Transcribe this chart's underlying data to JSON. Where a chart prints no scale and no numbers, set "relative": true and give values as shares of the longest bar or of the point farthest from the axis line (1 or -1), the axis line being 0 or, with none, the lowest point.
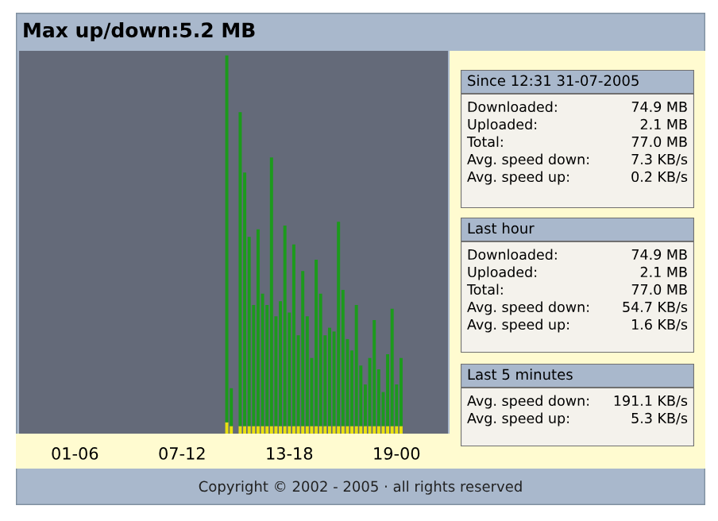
{
  "chart_data": [
    {
      "type": "bar",
      "title": "Max up/down:5.2 MB",
      "relative": true,
      "stacked": true,
      "tick_labels": "x",
      "categories": [
        null,
        null,
        null,
        null,
        null,
        null,
        null,
        null,
        null,
        null,
        null,
        null,
        "01-06",
        null,
        null,
        null,
        null,
        null,
        null,
        null,
        null,
        null,
        null,
        null,
        null,
        null,
        null,
        null,
        null,
        null,
        null,
        null,
        null,
        null,
        null,
        null,
        "07-12",
        null,
        null,
        null,
        null,
        null,
        null,
        null,
        null,
        null,
        null,
        null,
        null,
        null,
        null,
        null,
        null,
        null,
        null,
        null,
        null,
        null,
        null,
        null,
        "13-18",
        null,
        null,
        null,
        null,
        null,
        null,
        null,
        null,
        null,
        null,
        null,
        null,
        null,
        null,
        null,
        null,
        null,
        null,
        null,
        null,
        null,
        null,
        null,
        "19-00",
        null,
        null,
        null,
        null,
        null,
        null,
        null,
        null,
        null,
        null,
        null
      ],
      "series": [
        {
          "color": "#e8e010",
          "values": [
            null,
            null,
            null,
            null,
            null,
            null,
            null,
            null,
            null,
            null,
            null,
            null,
            null,
            null,
            null,
            null,
            null,
            null,
            null,
            null,
            null,
            null,
            null,
            null,
            null,
            null,
            null,
            null,
            null,
            null,
            null,
            null,
            null,
            null,
            null,
            null,
            null,
            null,
            null,
            null,
            null,
            null,
            null,
            null,
            null,
            null,
            0.03,
            0.02,
            null,
            0.02,
            0.02,
            0.02,
            0.02,
            0.02,
            0.02,
            0.02,
            0.02,
            0.02,
            0.02,
            0.02,
            0.02,
            0.02,
            0.02,
            0.02,
            0.02,
            0.02,
            0.02,
            0.02,
            0.02,
            0.02,
            0.02,
            0.02,
            0.02,
            0.02,
            0.02,
            0.02,
            0.02,
            0.02,
            0.02,
            0.02,
            0.02,
            0.02,
            0.02,
            0.02,
            0.02,
            0.02,
            null,
            null,
            null,
            null,
            null,
            null,
            null,
            null,
            null,
            null
          ]
        },
        {
          "color": "#1c9a1c",
          "values": [
            null,
            null,
            null,
            null,
            null,
            null,
            null,
            null,
            null,
            null,
            null,
            null,
            null,
            null,
            null,
            null,
            null,
            null,
            null,
            null,
            null,
            null,
            null,
            null,
            null,
            null,
            null,
            null,
            null,
            null,
            null,
            null,
            null,
            null,
            null,
            null,
            null,
            null,
            null,
            null,
            null,
            null,
            null,
            null,
            null,
            null,
            0.97,
            0.1,
            null,
            0.83,
            0.67,
            0.5,
            0.32,
            0.52,
            0.35,
            0.32,
            0.71,
            0.29,
            0.33,
            0.53,
            0.3,
            0.48,
            0.24,
            0.41,
            0.29,
            0.18,
            0.44,
            0.35,
            0.24,
            0.26,
            0.25,
            0.54,
            0.36,
            0.23,
            0.2,
            0.32,
            0.16,
            0.11,
            0.18,
            0.28,
            0.15,
            0.09,
            0.19,
            0.31,
            0.11,
            0.18,
            null,
            null,
            null,
            null,
            null,
            null,
            null,
            null,
            null,
            null
          ]
        }
      ],
      "annotations": [
        "Copyright © 2002 - 2005 · all rights reserved"
      ]
    },
    {
      "type": "other",
      "title": "Since 12:31 31-07-2005",
      "annotations": [
        ":"
      ],
      "categories": [
        "Downloaded",
        "Uploaded",
        "Total",
        "Avg. speed down",
        "Avg. speed up"
      ],
      "value_labels": [
        "74.9 MB",
        "2.1 MB",
        "77.0 MB",
        "7.3 KB/s",
        "0.2 KB/s"
      ]
    },
    {
      "type": "other",
      "title": "Last hour",
      "annotations": [
        ":"
      ],
      "categories": [
        "Downloaded",
        "Uploaded",
        "Total",
        "Avg. speed down",
        "Avg. speed up"
      ],
      "value_labels": [
        "74.9 MB",
        "2.1 MB",
        "77.0 MB",
        "54.7 KB/s",
        "1.6 KB/s"
      ]
    },
    {
      "type": "other",
      "title": "Last 5 minutes",
      "annotations": [
        ":"
      ],
      "categories": [
        "Avg. speed down",
        "Avg. speed up"
      ],
      "value_labels": [
        "191.1 KB/s",
        "5.3 KB/s"
      ]
    }
  ]
}
